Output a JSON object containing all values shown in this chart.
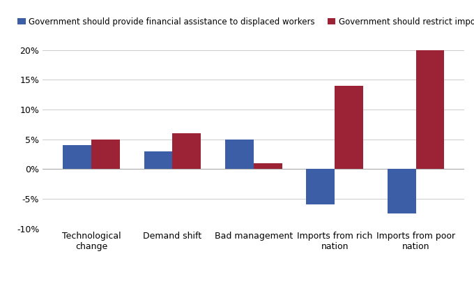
{
  "categories": [
    "Technological\nchange",
    "Demand shift",
    "Bad management",
    "Imports from rich\nnation",
    "Imports from poor\nnation"
  ],
  "blue_values": [
    4,
    3,
    5,
    -6,
    -7.5
  ],
  "red_values": [
    5,
    6,
    1,
    14,
    20
  ],
  "blue_color": "#3B5EA6",
  "red_color": "#9B2335",
  "blue_label": "Government should provide financial assistance to displaced workers",
  "red_label": "Government should restrict imports",
  "ylim": [
    -10,
    22
  ],
  "yticks": [
    -10,
    -5,
    0,
    5,
    10,
    15,
    20
  ],
  "bar_width": 0.35,
  "legend_fontsize": 8.5,
  "tick_fontsize": 9,
  "background_color": "#ffffff"
}
